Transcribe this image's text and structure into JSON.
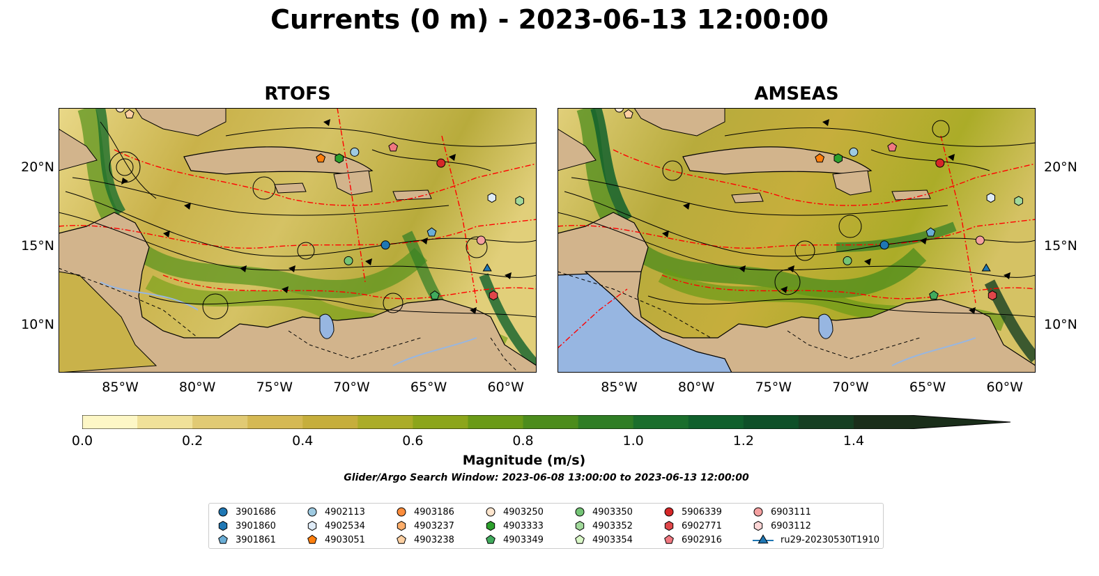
{
  "title": "Currents (0 m) - 2023-06-13 12:00:00",
  "panels": [
    {
      "title": "RTOFS"
    },
    {
      "title": "AMSEAS"
    }
  ],
  "x_ticks": [
    "85°W",
    "80°W",
    "75°W",
    "70°W",
    "65°W",
    "60°W"
  ],
  "y_ticks": [
    "20°N",
    "15°N",
    "10°N"
  ],
  "colorbar": {
    "label": "Magnitude (m/s)",
    "ticks": [
      "0.0",
      "0.2",
      "0.4",
      "0.6",
      "0.8",
      "1.0",
      "1.2",
      "1.4"
    ],
    "min": 0.0,
    "max": 1.5,
    "step": 0.1,
    "extend": "max",
    "colors": [
      "#fdf7c6",
      "#f0e199",
      "#e1ca74",
      "#d5b954",
      "#c6ae3c",
      "#abac28",
      "#8ca51b",
      "#6a9a17",
      "#4c8c1c",
      "#2f7d25",
      "#1a6e2c",
      "#10602c",
      "#0e5028",
      "#153f22",
      "#1a2e1a"
    ]
  },
  "search_window": "Glider/Argo Search Window: 2023-06-08 13:00:00 to 2023-06-13 12:00:00",
  "map_colors": {
    "land": "#d2b48c",
    "ocean_low": "#fdf7c6",
    "pacific": "#97b6e1",
    "eez": "#ff0000"
  },
  "legend": [
    {
      "label": "3901686",
      "marker": "circle",
      "color": "#1f77b4"
    },
    {
      "label": "3901860",
      "marker": "hexagon",
      "color": "#1f77b4"
    },
    {
      "label": "3901861",
      "marker": "pentagon",
      "color": "#6baed6"
    },
    {
      "label": "4902113",
      "marker": "circle",
      "color": "#9ecae1"
    },
    {
      "label": "4902534",
      "marker": "hexagon",
      "color": "#deebf7"
    },
    {
      "label": "4903051",
      "marker": "pentagon",
      "color": "#ff7f0e"
    },
    {
      "label": "4903186",
      "marker": "circle",
      "color": "#fd8d3c"
    },
    {
      "label": "4903237",
      "marker": "hexagon",
      "color": "#fdae6b"
    },
    {
      "label": "4903238",
      "marker": "pentagon",
      "color": "#fdd0a2"
    },
    {
      "label": "4903250",
      "marker": "circle",
      "color": "#fee6ce"
    },
    {
      "label": "4903333",
      "marker": "hexagon",
      "color": "#2ca02c"
    },
    {
      "label": "4903349",
      "marker": "pentagon",
      "color": "#41ab5d"
    },
    {
      "label": "4903350",
      "marker": "circle",
      "color": "#74c476"
    },
    {
      "label": "4903352",
      "marker": "hexagon",
      "color": "#a1d99b"
    },
    {
      "label": "4903354",
      "marker": "pentagon",
      "color": "#d9f7c7"
    },
    {
      "label": "5906339",
      "marker": "circle",
      "color": "#d62728"
    },
    {
      "label": "6902771",
      "marker": "hexagon",
      "color": "#e0474a"
    },
    {
      "label": "6902916",
      "marker": "pentagon",
      "color": "#f07880"
    },
    {
      "label": "6903111",
      "marker": "circle",
      "color": "#f4a0a0"
    },
    {
      "label": "6903112",
      "marker": "hexagon",
      "color": "#fcd5d5"
    },
    {
      "label": "ru29-20230530T1910",
      "marker": "triangle-line",
      "color": "#1f77b4"
    }
  ],
  "observations": [
    {
      "id": "3901686",
      "lon": -67.8,
      "lat": 15.1
    },
    {
      "id": "3901861",
      "lon": -64.8,
      "lat": 15.9
    },
    {
      "id": "4902113",
      "lon": -69.8,
      "lat": 21.0
    },
    {
      "id": "4902534",
      "lon": -60.9,
      "lat": 18.1
    },
    {
      "id": "4903051",
      "lon": -72.0,
      "lat": 20.6
    },
    {
      "id": "4903250",
      "lon": -85.0,
      "lat": 23.8
    },
    {
      "id": "4903238",
      "lon": -84.4,
      "lat": 23.4
    },
    {
      "id": "4903333",
      "lon": -70.8,
      "lat": 20.6
    },
    {
      "id": "4903349",
      "lon": -64.6,
      "lat": 11.9
    },
    {
      "id": "4903350",
      "lon": -70.2,
      "lat": 14.1
    },
    {
      "id": "4903352",
      "lon": -59.1,
      "lat": 17.9
    },
    {
      "id": "5906339",
      "lon": -64.2,
      "lat": 20.3
    },
    {
      "id": "6902771",
      "lon": -60.8,
      "lat": 11.9
    },
    {
      "id": "6902916",
      "lon": -67.3,
      "lat": 21.3
    },
    {
      "id": "6903111",
      "lon": -61.6,
      "lat": 15.4
    },
    {
      "id": "ru29-20230530T1910",
      "lon": -61.2,
      "lat": 13.6
    }
  ]
}
